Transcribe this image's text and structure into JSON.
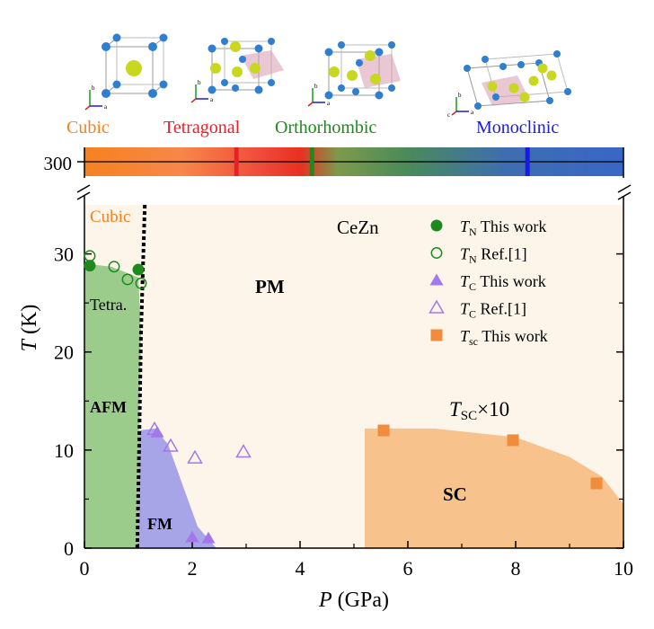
{
  "structures": [
    {
      "name": "Cubic",
      "color": "#f58220"
    },
    {
      "name": "Tetragonal",
      "color": "#e8202a"
    },
    {
      "name": "Orthorhombic",
      "color": "#1e8a1e"
    },
    {
      "name": "Monoclinic",
      "color": "#1a1ae6"
    }
  ],
  "axis_letters": {
    "a": "a",
    "b": "b",
    "c": "c"
  },
  "chart_data": {
    "type": "scatter",
    "title": "CeZn",
    "xlabel_symbol": "P",
    "xlabel_unit": "(GPa)",
    "ylabel_symbol": "T",
    "ylabel_unit": "(K)",
    "xlim": [
      0,
      10
    ],
    "ylim": [
      0,
      35
    ],
    "xticks": [
      "0",
      "2",
      "4",
      "6",
      "8",
      "10"
    ],
    "yticks": [
      "0",
      "10",
      "20",
      "30"
    ],
    "xtick_values": [
      0,
      2,
      4,
      6,
      8,
      10
    ],
    "ytick_values": [
      0,
      10,
      20,
      30
    ],
    "top_strip": {
      "temperature_label": "300",
      "markers": [
        {
          "structure": "Tetragonal",
          "x": 2.82
        },
        {
          "structure": "Orthorhombic",
          "x": 4.22
        },
        {
          "structure": "Monoclinic",
          "x": 8.22
        }
      ]
    },
    "series": [
      {
        "name": "T_N This work",
        "marker": "filled-circle",
        "color": "#1e8a1e",
        "points": [
          [
            0.1,
            28.8
          ],
          [
            1.0,
            28.4
          ]
        ]
      },
      {
        "name": "T_N Ref.[1]",
        "marker": "open-circle",
        "color": "#1e8a1e",
        "points": [
          [
            0.1,
            29.8
          ],
          [
            0.55,
            28.7
          ],
          [
            0.8,
            27.4
          ],
          [
            1.05,
            27.0
          ]
        ]
      },
      {
        "name": "T_C This work",
        "marker": "filled-triangle",
        "color": "#a478ea",
        "points": [
          [
            1.35,
            11.8
          ],
          [
            2.0,
            1.1
          ],
          [
            2.3,
            1.0
          ]
        ]
      },
      {
        "name": "T_C Ref.[1]",
        "marker": "open-triangle",
        "color": "#a478ea",
        "points": [
          [
            1.3,
            12.1
          ],
          [
            1.6,
            10.4
          ],
          [
            2.05,
            9.2
          ],
          [
            2.95,
            9.8
          ]
        ]
      },
      {
        "name": "T_sc This work",
        "marker": "filled-square",
        "color": "#f08c3c",
        "points": [
          [
            5.55,
            12.0
          ],
          [
            7.95,
            11.0
          ],
          [
            9.5,
            6.6
          ]
        ]
      }
    ],
    "legend": [
      {
        "sym": "T",
        "sub": "N",
        "text": "This work",
        "marker": "filled-circle",
        "color": "#1e8a1e"
      },
      {
        "sym": "T",
        "sub": "N",
        "text": "Ref.[1]",
        "marker": "open-circle",
        "color": "#1e8a1e"
      },
      {
        "sym": "T",
        "sub": "C",
        "text": "This work",
        "marker": "filled-triangle",
        "color": "#a478ea"
      },
      {
        "sym": "T",
        "sub": "C",
        "text": "Ref.[1]",
        "marker": "open-triangle",
        "color": "#a478ea"
      },
      {
        "sym": "T",
        "sub": "sc",
        "text": "This work",
        "marker": "filled-square",
        "color": "#f08c3c"
      }
    ],
    "regions": [
      {
        "name": "AFM",
        "color": "#9ccc8c",
        "boundary": [
          [
            0.0,
            0.0
          ],
          [
            0.0,
            29.0
          ],
          [
            0.5,
            28.7
          ],
          [
            1.0,
            27.6
          ],
          [
            1.05,
            22.0
          ],
          [
            1.02,
            12.0
          ],
          [
            1.0,
            0.0
          ]
        ]
      },
      {
        "name": "FM",
        "color": "#a8a4e8",
        "boundary": [
          [
            1.02,
            12.0
          ],
          [
            1.3,
            12.2
          ],
          [
            1.55,
            10.6
          ],
          [
            1.85,
            6.0
          ],
          [
            2.1,
            2.2
          ],
          [
            2.35,
            0.6
          ],
          [
            2.45,
            0.0
          ],
          [
            1.0,
            0.0
          ]
        ]
      },
      {
        "name": "SC",
        "color": "#f7c28c",
        "boundary": [
          [
            5.2,
            0.0
          ],
          [
            5.2,
            12.2
          ],
          [
            6.5,
            12.2
          ],
          [
            8.0,
            11.3
          ],
          [
            9.0,
            9.3
          ],
          [
            9.6,
            7.3
          ],
          [
            10.0,
            4.5
          ],
          [
            10.0,
            0.0
          ]
        ]
      },
      {
        "name": "PM",
        "color": "#fdf5ea"
      }
    ],
    "phase_boundary": {
      "style": "dotted",
      "points": [
        [
          0.98,
          0.0
        ],
        [
          1.02,
          12.0
        ],
        [
          1.05,
          22.0
        ],
        [
          1.12,
          35.0
        ]
      ]
    },
    "region_labels": [
      "PM",
      "AFM",
      "FM",
      "SC",
      "Tetra.",
      "Cubic"
    ],
    "annotation": {
      "sym": "T",
      "sub": "SC",
      "text": "×10"
    }
  }
}
